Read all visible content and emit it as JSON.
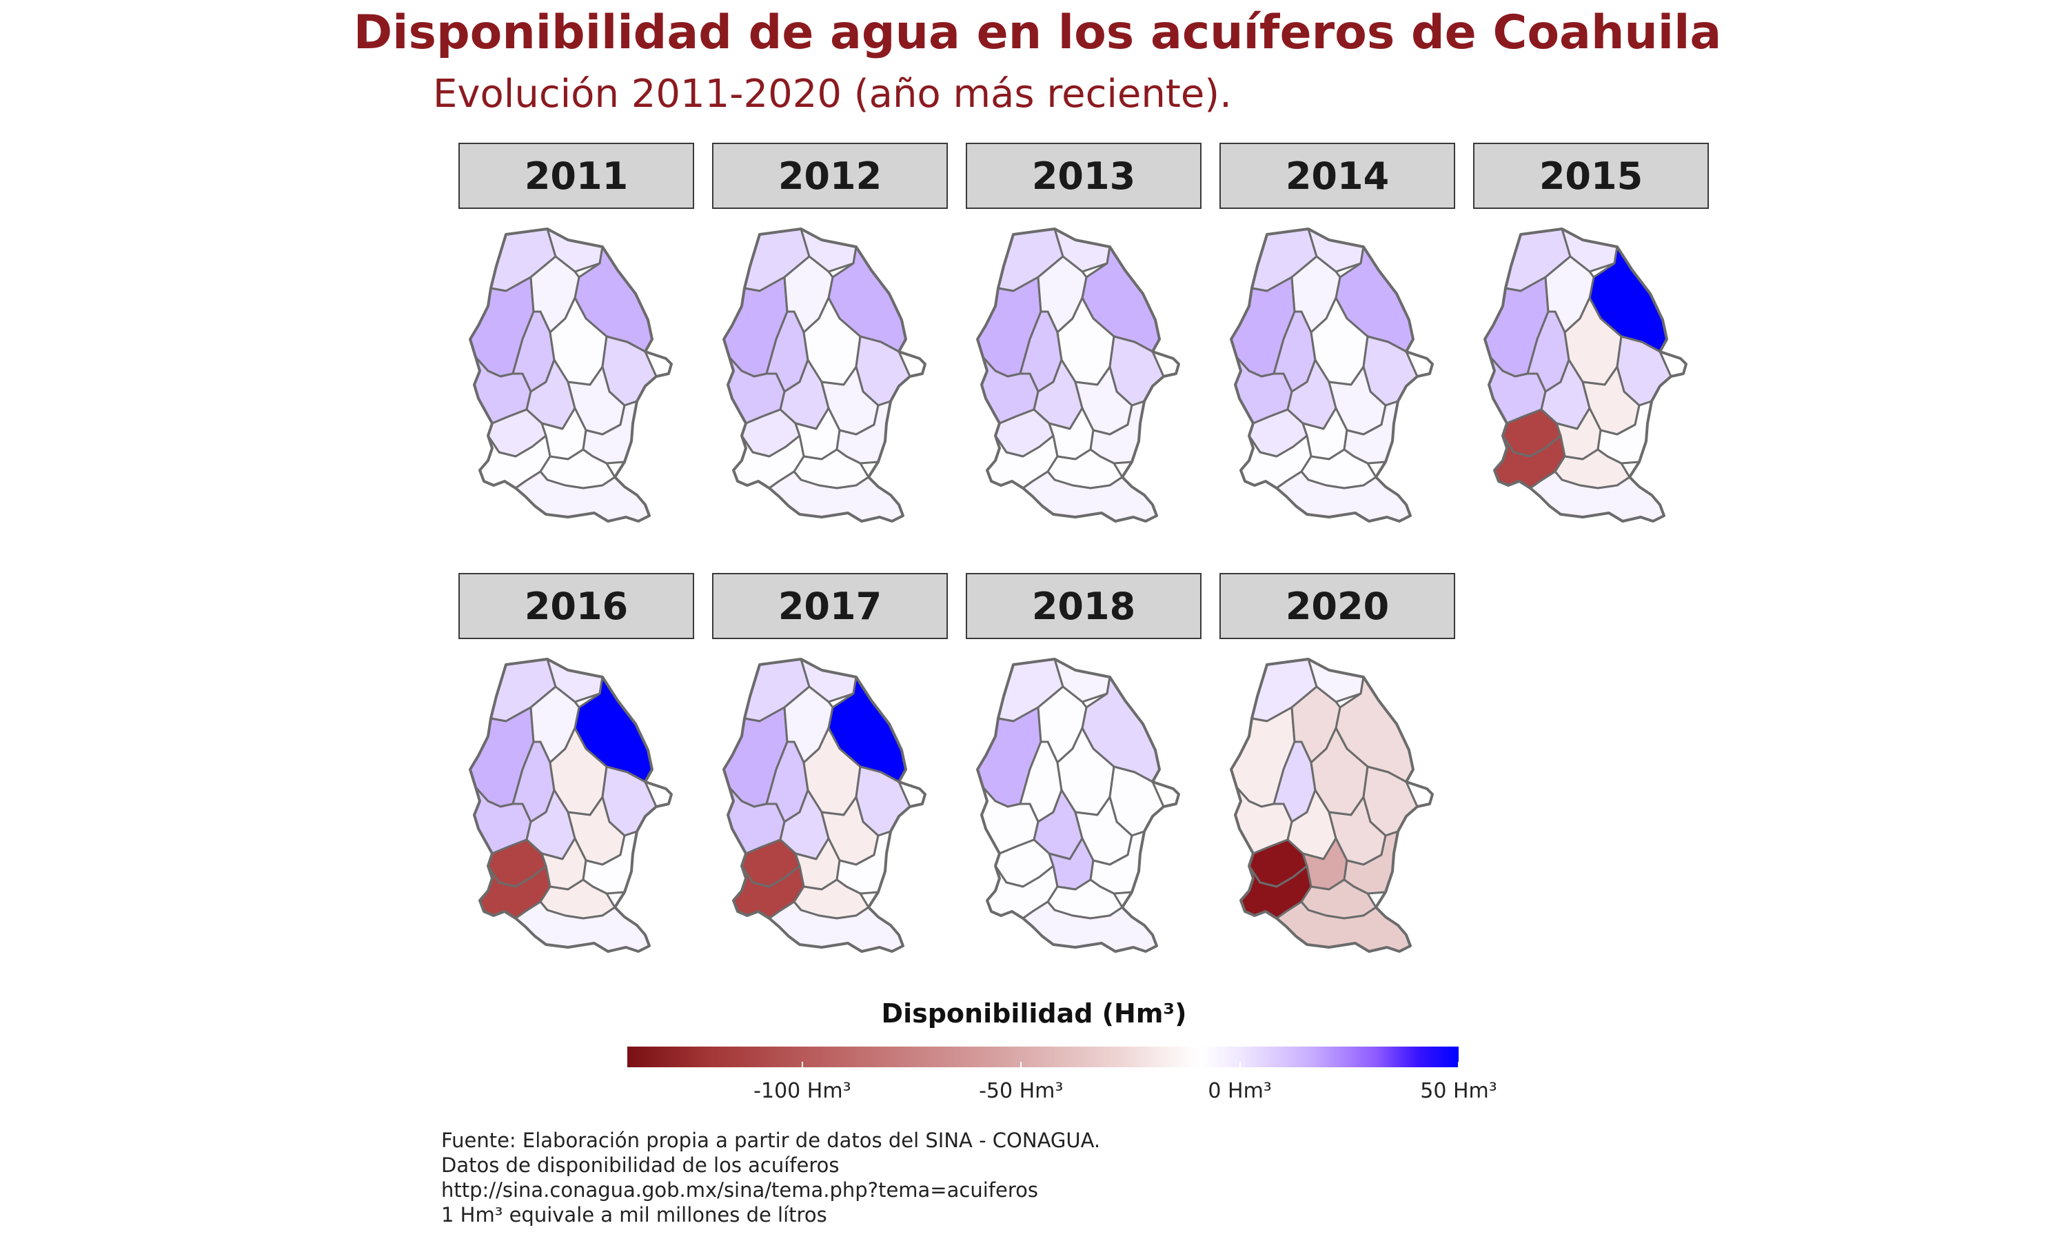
{
  "title": "Disponibilidad de agua en los acuíferos de Coahuila",
  "subtitle": "Evolución 2011-2020 (año más reciente).",
  "chart_data": {
    "type": "choropleth-facets",
    "panels": [
      {
        "year": "2011",
        "pattern": "mild",
        "blue_region": false,
        "red_region": 0
      },
      {
        "year": "2012",
        "pattern": "mild",
        "blue_region": false,
        "red_region": 0
      },
      {
        "year": "2013",
        "pattern": "mild",
        "blue_region": false,
        "red_region": 0
      },
      {
        "year": "2014",
        "pattern": "mild",
        "blue_region": false,
        "red_region": 0
      },
      {
        "year": "2015",
        "pattern": "mixed",
        "blue_region": true,
        "red_region": 1
      },
      {
        "year": "2016",
        "pattern": "mixed",
        "blue_region": true,
        "red_region": 1
      },
      {
        "year": "2017",
        "pattern": "mixed",
        "blue_region": true,
        "red_region": 1
      },
      {
        "year": "2018",
        "pattern": "light",
        "blue_region": false,
        "red_region": 0
      },
      {
        "year": "2020",
        "pattern": "deficit",
        "blue_region": false,
        "red_region": 2
      }
    ],
    "legend": {
      "title": "Disponibilidad (Hm³)",
      "range": [
        -140,
        50
      ],
      "ticks": [
        {
          "value": -100,
          "label": "-100 Hm³"
        },
        {
          "value": -50,
          "label": "-50 Hm³"
        },
        {
          "value": 0,
          "label": "0 Hm³"
        },
        {
          "value": 50,
          "label": "50 Hm³"
        }
      ],
      "low_color": "#7a1014",
      "mid_color": "#ffffff",
      "high_color": "#0000ff"
    },
    "colors": {
      "border": "#6b6b6b",
      "strip_fill": "#d4d4d4",
      "deep_red": "#8b141b",
      "red": "#b04444",
      "blue": "#0000ff"
    }
  },
  "source": [
    "Fuente: Elaboración propia a partir de datos del SINA - CONAGUA.",
    "Datos de disponibilidad de los acuíferos",
    "http://sina.conagua.gob.mx/sina/tema.php?tema=acuiferos",
    "1 Hm³ equivale a mil millones de lítros"
  ]
}
